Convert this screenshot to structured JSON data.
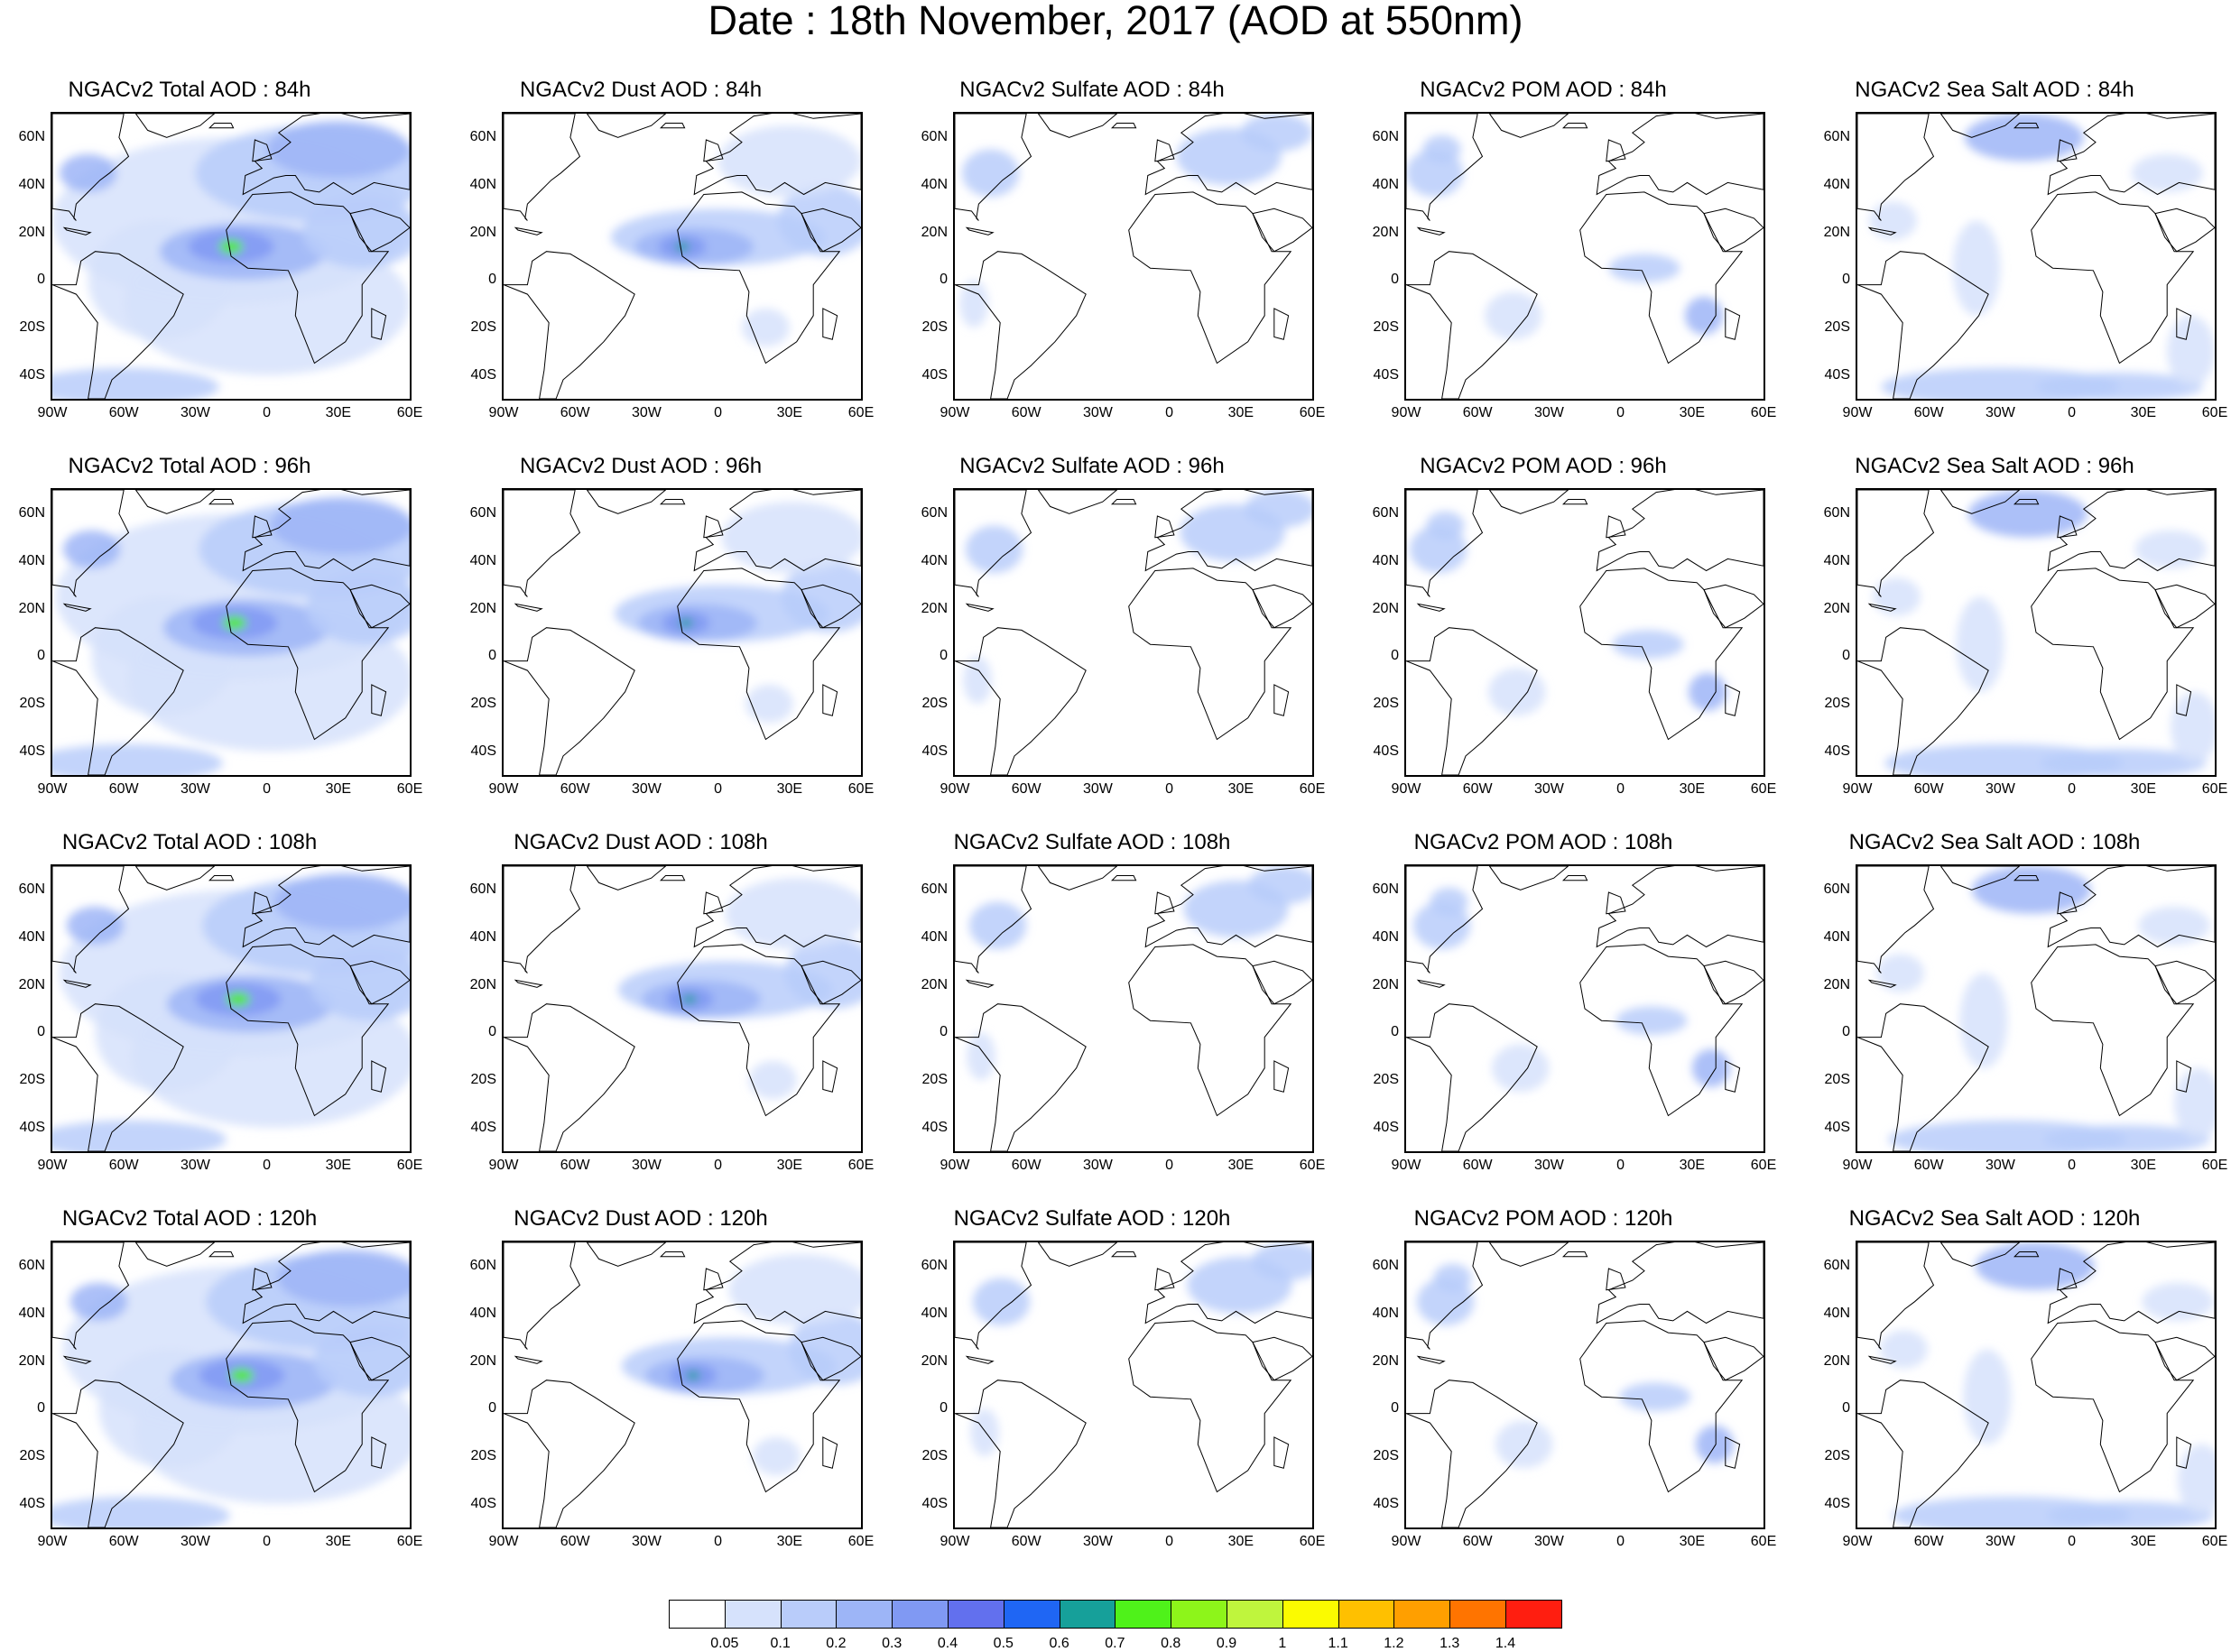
{
  "title": "Date : 18th November, 2017 (AOD at 550nm)",
  "panels": [
    {
      "title": "NGACv2 Total AOD : 84h",
      "species": "total",
      "lead": 84
    },
    {
      "title": "NGACv2 Dust AOD : 84h",
      "species": "dust",
      "lead": 84
    },
    {
      "title": "NGACv2 Sulfate AOD : 84h",
      "species": "sulfate",
      "lead": 84
    },
    {
      "title": "NGACv2 POM AOD : 84h",
      "species": "pom",
      "lead": 84
    },
    {
      "title": "NGACv2 Sea Salt AOD : 84h",
      "species": "seasalt",
      "lead": 84
    },
    {
      "title": "NGACv2 Total AOD : 96h",
      "species": "total",
      "lead": 96
    },
    {
      "title": "NGACv2 Dust AOD : 96h",
      "species": "dust",
      "lead": 96
    },
    {
      "title": "NGACv2 Sulfate AOD : 96h",
      "species": "sulfate",
      "lead": 96
    },
    {
      "title": "NGACv2 POM AOD : 96h",
      "species": "pom",
      "lead": 96
    },
    {
      "title": "NGACv2 Sea Salt AOD : 96h",
      "species": "seasalt",
      "lead": 96
    },
    {
      "title": "NGACv2 Total AOD : 108h",
      "species": "total",
      "lead": 108
    },
    {
      "title": "NGACv2 Dust AOD : 108h",
      "species": "dust",
      "lead": 108
    },
    {
      "title": "NGACv2 Sulfate AOD : 108h",
      "species": "sulfate",
      "lead": 108
    },
    {
      "title": "NGACv2 POM AOD : 108h",
      "species": "pom",
      "lead": 108
    },
    {
      "title": "NGACv2 Sea Salt AOD : 108h",
      "species": "seasalt",
      "lead": 108
    },
    {
      "title": "NGACv2 Total AOD : 120h",
      "species": "total",
      "lead": 120
    },
    {
      "title": "NGACv2 Dust AOD : 120h",
      "species": "dust",
      "lead": 120
    },
    {
      "title": "NGACv2 Sulfate AOD : 120h",
      "species": "sulfate",
      "lead": 120
    },
    {
      "title": "NGACv2 POM AOD : 120h",
      "species": "pom",
      "lead": 120
    },
    {
      "title": "NGACv2 Sea Salt  AOD : 120h",
      "species": "seasalt",
      "lead": 120
    }
  ],
  "map": {
    "lat_ticks": [
      "60N",
      "40N",
      "20N",
      "0",
      "20S",
      "40S"
    ],
    "lon_ticks": [
      "90W",
      "60W",
      "30W",
      "0",
      "30E",
      "60E"
    ],
    "lat_range": [
      -50,
      70
    ],
    "lon_range": [
      -90,
      60
    ]
  },
  "colorbar": {
    "levels": [
      "0.05",
      "0.1",
      "0.2",
      "0.3",
      "0.4",
      "0.5",
      "0.6",
      "0.7",
      "0.8",
      "0.9",
      "1",
      "1.1",
      "1.2",
      "1.3",
      "1.4"
    ],
    "colors": [
      "#ffffff",
      "#d6e2fc",
      "#b9ccfa",
      "#9db5f7",
      "#8099f3",
      "#6270ee",
      "#1f66f4",
      "#16a09a",
      "#4ff21a",
      "#8df51a",
      "#bff53d",
      "#fbfb00",
      "#ffc000",
      "#ff9f00",
      "#ff7400",
      "#ff1e10"
    ]
  }
}
